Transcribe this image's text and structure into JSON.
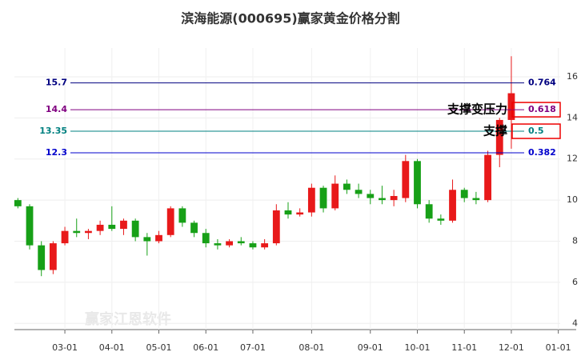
{
  "chart_data": {
    "type": "candlestick",
    "title": "滨海能源(000695)赢家黄金价格分割",
    "watermark": "赢家江恩软件",
    "categories": [
      null,
      null,
      null,
      null,
      "03-01",
      null,
      null,
      null,
      "04-01",
      null,
      null,
      null,
      "05-01",
      null,
      null,
      null,
      "06-01",
      null,
      null,
      null,
      "07-01",
      null,
      null,
      null,
      null,
      "08-01",
      null,
      null,
      null,
      null,
      "09-01",
      null,
      null,
      null,
      "10-01",
      null,
      null,
      null,
      "11-01",
      null,
      null,
      null,
      "12-01",
      null,
      null,
      null,
      "01-01"
    ],
    "open": [
      10,
      9.7,
      7.8,
      6.6,
      7.9,
      8.5,
      8.4,
      8.5,
      8.8,
      8.6,
      9.0,
      8.2,
      8.0,
      8.3,
      9.6,
      8.9,
      8.4,
      7.9,
      7.8,
      8.0,
      7.9,
      7.7,
      7.9,
      9.5,
      9.3,
      9.4,
      10.6,
      9.6,
      10.8,
      10.5,
      10.3,
      10.1,
      10.0,
      10.1,
      11.9,
      9.8,
      9.1,
      9.0,
      10.5,
      10.1,
      10.0,
      12.2,
      13.9,
      null,
      null,
      null,
      null
    ],
    "high": [
      10.1,
      9.8,
      8.0,
      8.0,
      8.7,
      9.1,
      8.6,
      9.0,
      9.7,
      9.1,
      9.1,
      8.4,
      8.5,
      9.7,
      9.7,
      9.0,
      8.6,
      8.1,
      8.1,
      8.2,
      8.0,
      8.1,
      9.8,
      9.9,
      9.6,
      10.8,
      10.7,
      11.2,
      11.0,
      10.8,
      10.5,
      10.7,
      10.5,
      12.2,
      12.0,
      10.0,
      9.3,
      11.0,
      10.6,
      10.4,
      12.4,
      14.0,
      17.0,
      null,
      null,
      null,
      null
    ],
    "low": [
      9.6,
      7.6,
      6.3,
      6.4,
      7.8,
      8.2,
      8.1,
      8.3,
      8.5,
      8.3,
      8.0,
      7.3,
      7.9,
      8.2,
      8.7,
      8.2,
      7.7,
      7.6,
      7.7,
      7.8,
      7.6,
      7.6,
      7.8,
      9.1,
      9.2,
      9.2,
      9.4,
      9.5,
      10.3,
      10.1,
      9.8,
      9.8,
      9.7,
      9.9,
      9.6,
      8.9,
      8.8,
      8.9,
      9.9,
      9.8,
      9.9,
      11.6,
      12.5,
      null,
      null,
      null,
      null
    ],
    "close": [
      9.7,
      7.8,
      6.6,
      7.9,
      8.5,
      8.4,
      8.5,
      8.8,
      8.6,
      9.0,
      8.2,
      8.0,
      8.3,
      9.6,
      8.9,
      8.4,
      7.9,
      7.8,
      8.0,
      7.9,
      7.7,
      7.9,
      9.5,
      9.3,
      9.4,
      10.6,
      9.6,
      10.8,
      10.5,
      10.3,
      10.1,
      10.0,
      10.2,
      11.9,
      9.8,
      9.1,
      9.0,
      10.5,
      10.1,
      10.0,
      12.2,
      13.9,
      15.2,
      null,
      null,
      null,
      null
    ],
    "up_color": "#e8191a",
    "down_color": "#17a017",
    "ylim": [
      3.7,
      17.4
    ],
    "yticks": [
      4,
      6,
      8,
      10,
      12,
      14,
      16
    ],
    "grid": true,
    "levels": [
      {
        "value": 15.7,
        "ratio": 0.764,
        "color": "#000080",
        "highlight": false
      },
      {
        "value": 14.4,
        "ratio": 0.618,
        "color": "#800080",
        "highlight": true
      },
      {
        "value": 13.35,
        "ratio": 0.5,
        "color": "#008080",
        "highlight": true
      },
      {
        "value": 12.3,
        "ratio": 0.382,
        "color": "#0000cc",
        "highlight": false
      }
    ],
    "annotations": [
      "支撑变压力",
      "支撑"
    ]
  }
}
